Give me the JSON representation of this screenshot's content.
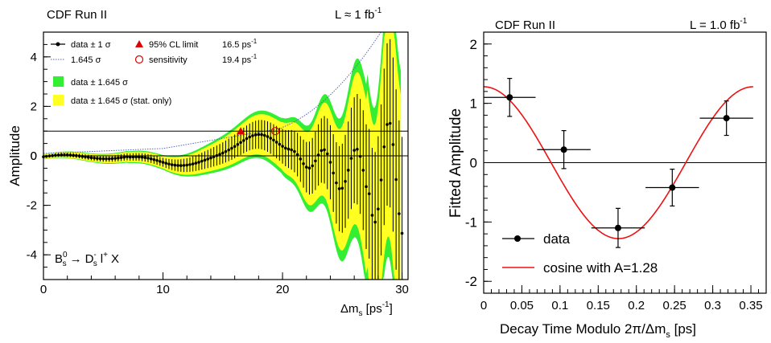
{
  "chart_data": [
    {
      "type": "line",
      "header_left": "CDF Run II",
      "header_right": "L ≈ 1 fb",
      "header_right_sup": "-1",
      "xlabel_main": "Δm",
      "xlabel_sub": "s",
      "xlabel_unit": " [ps",
      "xlabel_unit_sup": "-1",
      "xlabel_close": "]",
      "ylabel": "Amplitude",
      "xlim": [
        0,
        30.5
      ],
      "ylim": [
        -5,
        5
      ],
      "xticks": [
        "0",
        "10",
        "20",
        "30"
      ],
      "yticks": [
        "-4",
        "-2",
        "0",
        "2",
        "4"
      ],
      "legend": {
        "data": "data ± 1 σ",
        "sigma_line": "1.645 σ",
        "limit_label": "95% CL limit",
        "limit_value": "16.5 ps",
        "limit_value_sup": "-1",
        "sens_label": "sensitivity",
        "sens_value": "19.4 ps",
        "sens_value_sup": "-1",
        "band_total": "data ± 1.645 σ",
        "band_stat": "data ± 1.645 σ (stat. only)"
      },
      "decay": {
        "b": "B",
        "b_sup": "0",
        "b_sub": "s",
        "arrow": "→",
        "d": "D",
        "d_sup": "-",
        "d_sub": "s",
        "l": "l",
        "l_sup": "+",
        "x": "X"
      },
      "limit_marker": {
        "x": 16.5,
        "y": 1
      },
      "sensitivity_marker": {
        "x": 19.4,
        "y": 1
      },
      "colors": {
        "band_total": "#33ee33",
        "band_stat": "#ffff22",
        "sigma_line": "#5566cc",
        "limit": "#dd0000"
      }
    },
    {
      "type": "scatter",
      "header_left": "CDF Run II",
      "header_right": "L = 1.0 fb",
      "header_right_sup": "-1",
      "xlabel_main": "Decay Time Modulo 2π/Δm",
      "xlabel_sub": "s",
      "xlabel_unit": " [ps]",
      "ylabel": "Fitted Amplitude",
      "xlim": [
        0,
        0.37
      ],
      "ylim": [
        -2.2,
        2.2
      ],
      "xticks": [
        "0",
        "0.05",
        "0.1",
        "0.15",
        "0.2",
        "0.25",
        "0.3",
        "0.35"
      ],
      "yticks": [
        "-2",
        "-1",
        "0",
        "1",
        "2"
      ],
      "points": [
        {
          "x": 0.034,
          "y": 1.1,
          "xerr": 0.034,
          "yerr": 0.32
        },
        {
          "x": 0.105,
          "y": 0.22,
          "xerr": 0.035,
          "yerr": 0.32
        },
        {
          "x": 0.176,
          "y": -1.1,
          "xerr": 0.035,
          "yerr": 0.33
        },
        {
          "x": 0.247,
          "y": -0.42,
          "xerr": 0.035,
          "yerr": 0.31
        },
        {
          "x": 0.318,
          "y": 0.75,
          "xerr": 0.035,
          "yerr": 0.29
        }
      ],
      "curve": {
        "amplitude": 1.28,
        "period": 0.353,
        "xmax": 0.353
      },
      "legend": {
        "data": "data",
        "curve": "cosine with A=1.28"
      },
      "colors": {
        "curve": "#ee1111"
      }
    }
  ]
}
